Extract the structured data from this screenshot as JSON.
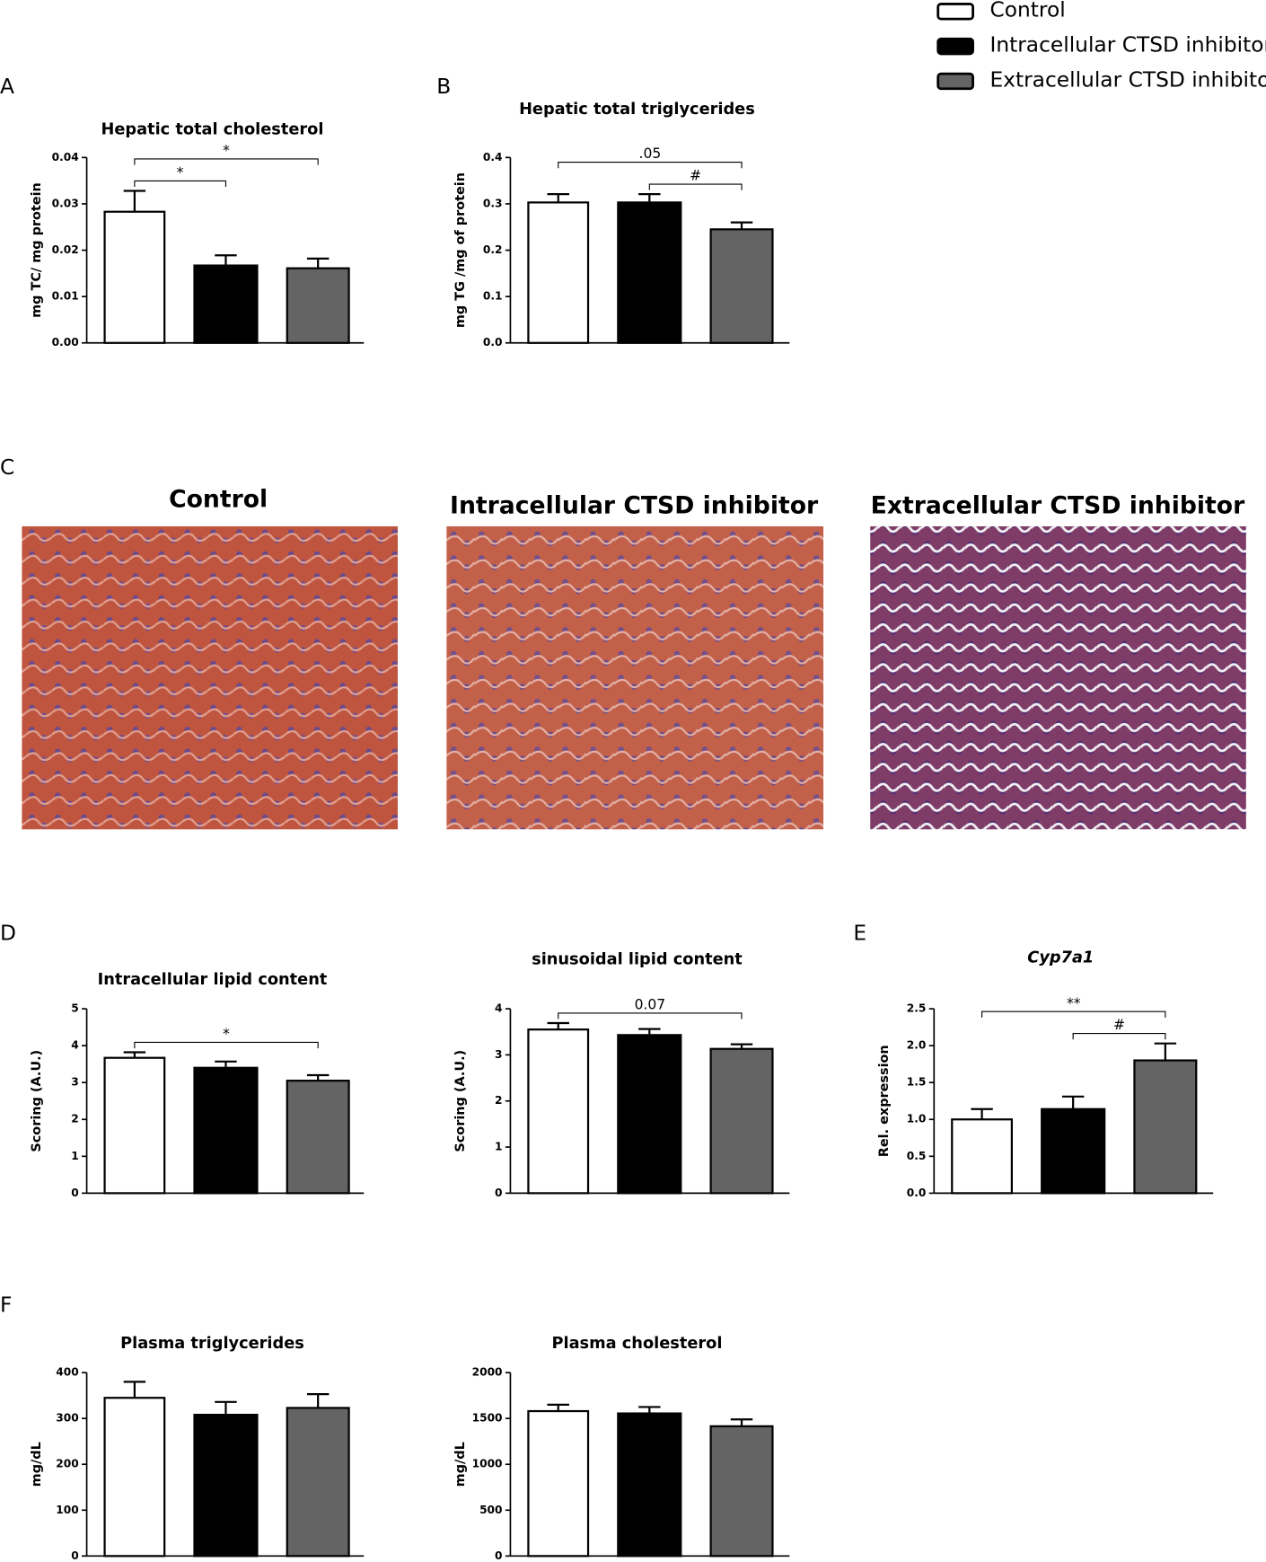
{
  "legend": [
    {
      "name": "Control",
      "color": "#ffffff"
    },
    {
      "name": "Intracellular CTSD inhibitor",
      "color": "#000000"
    },
    {
      "name": "Extracellular CTSD inhibitor",
      "color": "#646464"
    }
  ],
  "panel_labels": [
    "A",
    "B",
    "C",
    "D",
    "E",
    "F"
  ],
  "micrographs": {
    "titles": [
      "Control",
      "Intracellular CTSD inhibitor",
      "Extracellular CTSD inhibitor"
    ]
  },
  "chart_data": [
    {
      "type": "bar",
      "title": "Hepatic total cholesterol",
      "ylabel": "mg TC/ mg protein",
      "values": [
        0.0283,
        0.0167,
        0.0161
      ],
      "errors": [
        0.0045,
        0.0022,
        0.0021
      ],
      "ylim": [
        0,
        0.04
      ],
      "yticks": [
        {
          "value": 0,
          "label": "0.00"
        },
        0.01,
        0.02,
        0.03,
        0.04
      ],
      "annotations": [
        {
          "label": "*",
          "pair": [
            0,
            1
          ]
        },
        {
          "label": "*",
          "pair": [
            0,
            2
          ]
        }
      ]
    },
    {
      "type": "bar",
      "title": "Hepatic total triglycerides",
      "ylabel": "mg TG /mg of protein",
      "values": [
        0.303,
        0.303,
        0.245
      ],
      "errors": [
        0.018,
        0.018,
        0.015
      ],
      "ylim": [
        0,
        0.4
      ],
      "yticks": [
        {
          "value": 0,
          "label": "0.0"
        },
        0.1,
        0.2,
        0.3,
        0.4
      ],
      "annotations": [
        {
          "label": "#",
          "pair": [
            1,
            2
          ]
        },
        {
          "label": ".05",
          "pair": [
            0,
            2
          ]
        }
      ]
    },
    {
      "type": "bar",
      "title": "Intracellular lipid content",
      "ylabel": "Scoring (A.U.)",
      "values": [
        3.67,
        3.4,
        3.05
      ],
      "errors": [
        0.15,
        0.17,
        0.15
      ],
      "ylim": [
        0,
        5
      ],
      "yticks": [
        0,
        1,
        2,
        3,
        4,
        5
      ],
      "annotations": [
        {
          "label": "*",
          "pair": [
            0,
            2
          ]
        }
      ]
    },
    {
      "type": "bar",
      "title": "sinusoidal lipid content",
      "ylabel": "Scoring (A.U.)",
      "values": [
        3.55,
        3.43,
        3.13
      ],
      "errors": [
        0.14,
        0.13,
        0.1
      ],
      "ylim": [
        0,
        4
      ],
      "yticks": [
        0,
        1,
        2,
        3,
        4
      ],
      "annotations": [
        {
          "label": "0.07",
          "pair": [
            0,
            2
          ]
        }
      ]
    },
    {
      "type": "bar",
      "title": "Cyp7a1",
      "title_style": "italic",
      "ylabel": "Rel. expression",
      "values": [
        1.0,
        1.14,
        1.8
      ],
      "errors": [
        0.14,
        0.17,
        0.23
      ],
      "ylim": [
        0,
        2.5
      ],
      "yticks": [
        {
          "value": 0,
          "label": "0.0"
        },
        0.5,
        {
          "value": 1,
          "label": "1.0"
        },
        1.5,
        {
          "value": 2,
          "label": "2.0"
        },
        2.5
      ],
      "annotations": [
        {
          "label": "#",
          "pair": [
            1,
            2
          ]
        },
        {
          "label": "**",
          "pair": [
            0,
            2
          ]
        }
      ]
    },
    {
      "type": "bar",
      "title": "Plasma triglycerides",
      "ylabel": "mg/dL",
      "values": [
        345,
        308,
        323
      ],
      "errors": [
        35,
        28,
        30
      ],
      "ylim": [
        0,
        400
      ],
      "yticks": [
        0,
        100,
        200,
        300,
        400
      ],
      "annotations": []
    },
    {
      "type": "bar",
      "title": "Plasma cholesterol",
      "ylabel": "mg/dL",
      "values": [
        1580,
        1555,
        1415
      ],
      "errors": [
        70,
        70,
        75
      ],
      "ylim": [
        0,
        2000
      ],
      "yticks": [
        0,
        500,
        1000,
        1500,
        2000
      ],
      "annotations": []
    }
  ]
}
